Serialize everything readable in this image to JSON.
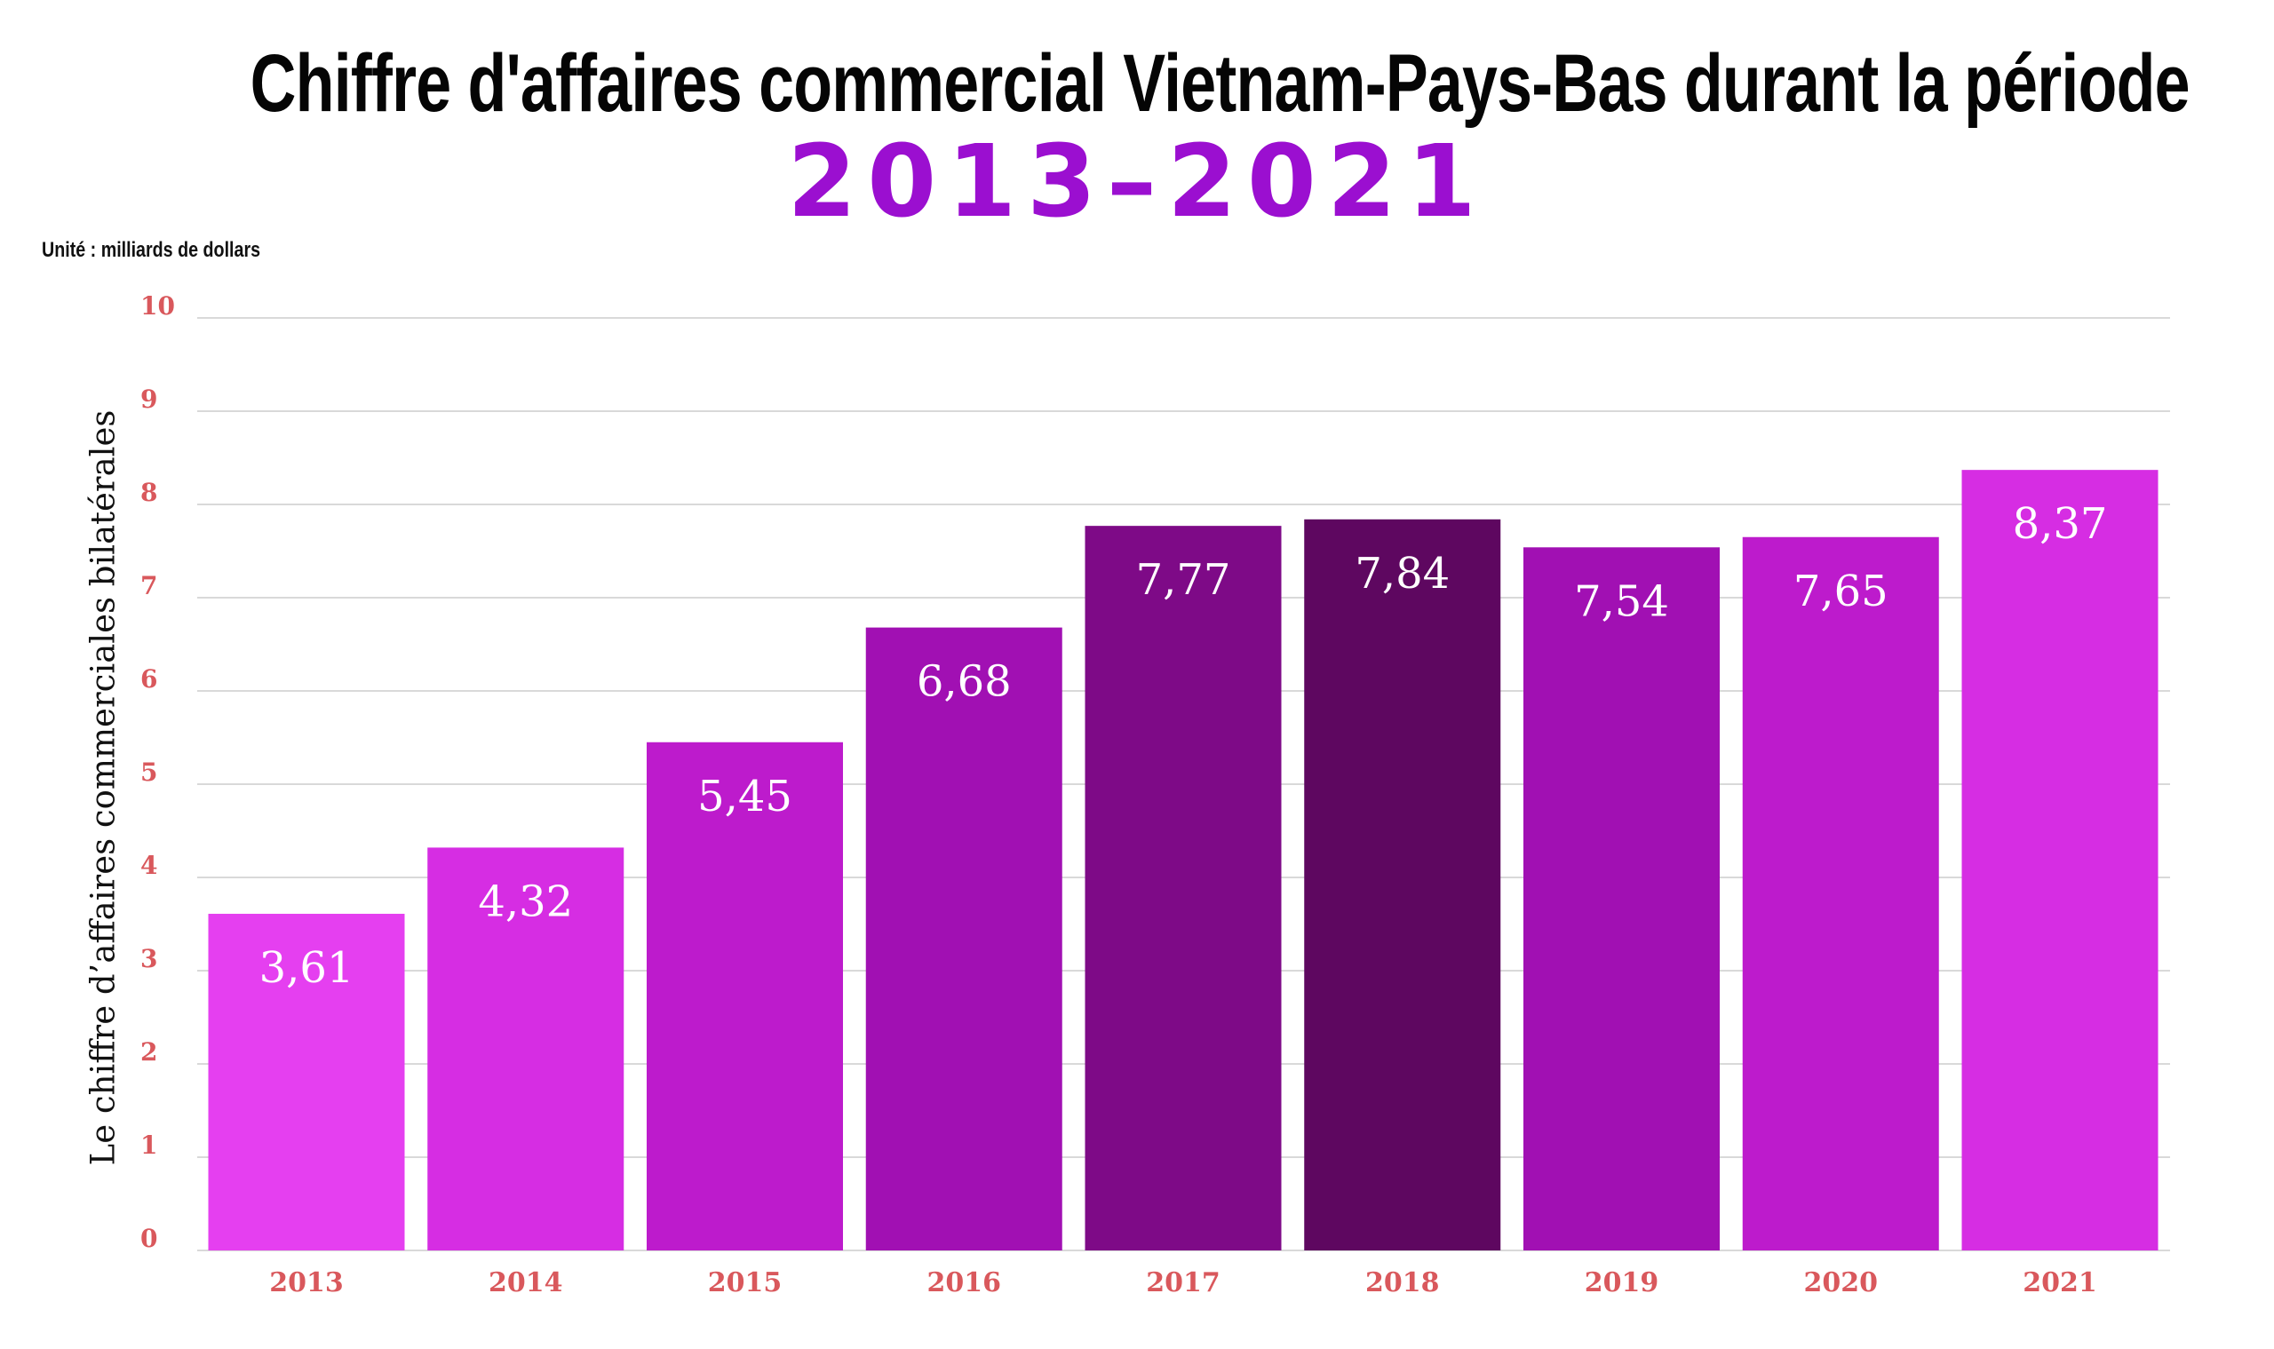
{
  "chart_data": {
    "type": "bar",
    "title": "Chiffre d'affaires commercial Vietnam-Pays-Bas durant la période",
    "subtitle": "2013–2021",
    "unit_note": "Unité : milliards de dollars",
    "xlabel": "",
    "ylabel": "Le chiffre d’affaires commerciales bilatérales",
    "categories": [
      "2013",
      "2014",
      "2015",
      "2016",
      "2017",
      "2018",
      "2019",
      "2020",
      "2021"
    ],
    "values": [
      3.61,
      4.32,
      5.45,
      6.68,
      7.77,
      7.84,
      7.54,
      7.65,
      8.37
    ],
    "data_labels": [
      "3,61",
      "4,32",
      "5,45",
      "6,68",
      "7,77",
      "7,84",
      "7,54",
      "7,65",
      "8,37"
    ],
    "yticks": [
      "0",
      "1",
      "2",
      "3",
      "4",
      "5",
      "6",
      "7",
      "8",
      "9",
      "10"
    ],
    "ylim": [
      0,
      10
    ],
    "grid": true,
    "legend": "none",
    "colors": {
      "bars": [
        "#e53ff0",
        "#d62de3",
        "#bd1bcc",
        "#a110b3",
        "#7e0a87",
        "#5e0760",
        "#a110b3",
        "#bd1bcc",
        "#d62de3"
      ],
      "title": "#050505",
      "subtitle": "#9b0fd0",
      "ticks": "#d9585c",
      "grid": "#d9d9d9"
    }
  }
}
